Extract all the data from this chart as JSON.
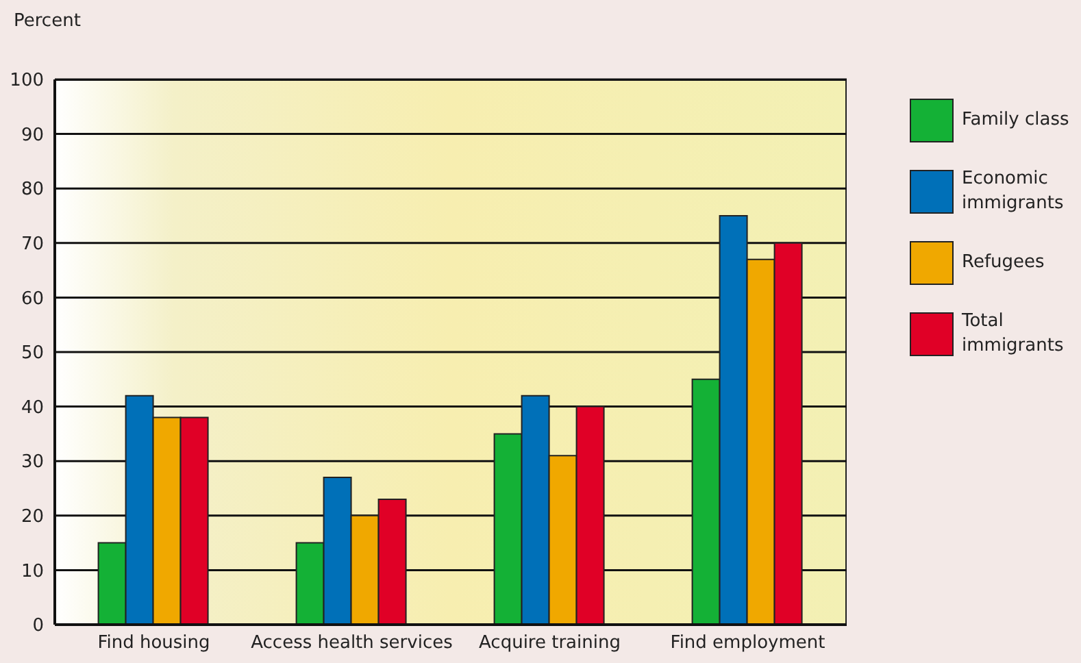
{
  "chart_data": {
    "type": "bar",
    "ylabel": "Percent",
    "categories": [
      "Find housing",
      "Access health services",
      "Acquire training",
      "Find employment"
    ],
    "series": [
      {
        "name": "Family class",
        "color": "#14b136",
        "values": [
          15,
          15,
          35,
          45
        ]
      },
      {
        "name": "Economic immigrants",
        "color": "#0070b8",
        "values": [
          42,
          27,
          42,
          75
        ]
      },
      {
        "name": "Refugees",
        "color": "#f0a800",
        "values": [
          38,
          20,
          31,
          67
        ]
      },
      {
        "name": "Total immigrants",
        "color": "#e00026",
        "values": [
          38,
          23,
          40,
          70
        ]
      }
    ],
    "ylim": [
      0,
      100
    ],
    "yticks": [
      0,
      10,
      20,
      30,
      40,
      50,
      60,
      70,
      80,
      90,
      100
    ],
    "grid": "y",
    "legend": "right"
  }
}
